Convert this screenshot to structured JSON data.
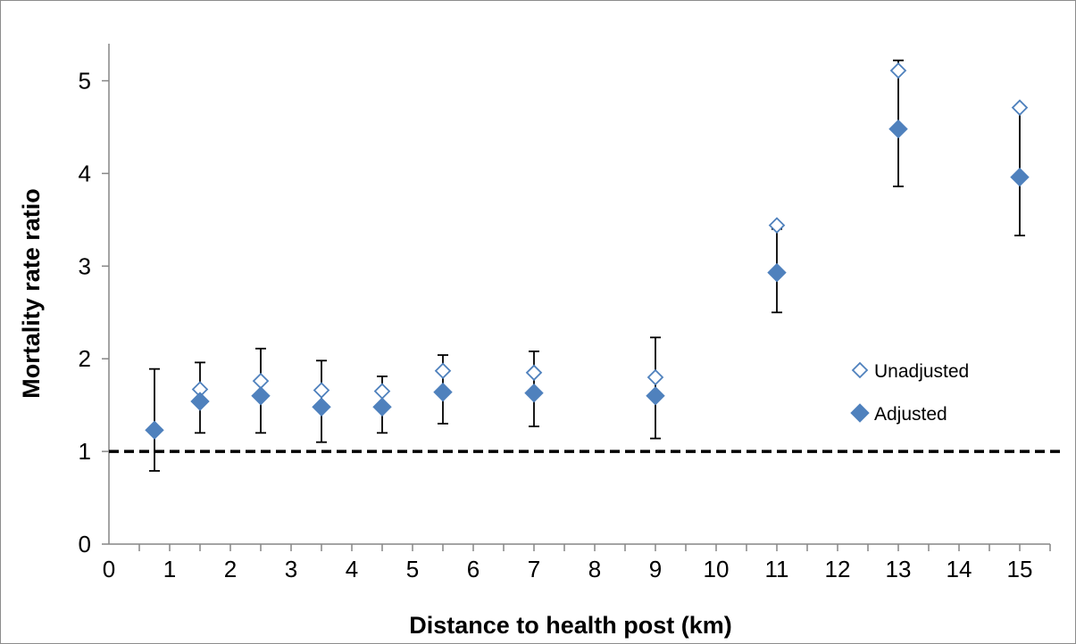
{
  "chart_data": {
    "type": "scatter",
    "title": "",
    "xlabel": "Distance to health post (km)",
    "ylabel": "Mortality rate ratio",
    "xlim": [
      0,
      15.5
    ],
    "ylim": [
      0,
      5.4
    ],
    "x_ticks": [
      0,
      1,
      2,
      3,
      4,
      5,
      6,
      7,
      8,
      9,
      10,
      11,
      12,
      13,
      14,
      15
    ],
    "y_ticks": [
      0,
      1,
      2,
      3,
      4,
      5
    ],
    "grid": false,
    "legend_position": "right",
    "reference_line": {
      "y": 1,
      "style": "dashed"
    },
    "series": [
      {
        "name": "Unadjusted",
        "marker": "diamond-open",
        "color": "#4f81bd",
        "points": [
          {
            "x": 0.75,
            "y": 1.23
          },
          {
            "x": 1.5,
            "y": 1.67
          },
          {
            "x": 2.5,
            "y": 1.76
          },
          {
            "x": 3.5,
            "y": 1.66
          },
          {
            "x": 4.5,
            "y": 1.65
          },
          {
            "x": 5.5,
            "y": 1.87
          },
          {
            "x": 7,
            "y": 1.85
          },
          {
            "x": 9,
            "y": 1.8
          },
          {
            "x": 11,
            "y": 3.44
          },
          {
            "x": 13,
            "y": 5.11
          },
          {
            "x": 15,
            "y": 4.71
          }
        ]
      },
      {
        "name": "Adjusted",
        "marker": "diamond-filled",
        "color": "#4f81bd",
        "points": [
          {
            "x": 0.75,
            "y": 1.23,
            "lo": 0.79,
            "hi": 1.89
          },
          {
            "x": 1.5,
            "y": 1.54,
            "lo": 1.2,
            "hi": 1.96
          },
          {
            "x": 2.5,
            "y": 1.6,
            "lo": 1.2,
            "hi": 2.11
          },
          {
            "x": 3.5,
            "y": 1.48,
            "lo": 1.1,
            "hi": 1.98
          },
          {
            "x": 4.5,
            "y": 1.48,
            "lo": 1.2,
            "hi": 1.81
          },
          {
            "x": 5.5,
            "y": 1.64,
            "lo": 1.3,
            "hi": 2.04
          },
          {
            "x": 7,
            "y": 1.63,
            "lo": 1.27,
            "hi": 2.08
          },
          {
            "x": 9,
            "y": 1.6,
            "lo": 1.14,
            "hi": 2.23
          },
          {
            "x": 11,
            "y": 2.93,
            "lo": 2.5,
            "hi": 3.4
          },
          {
            "x": 13,
            "y": 4.48,
            "lo": 3.86,
            "hi": 5.22
          },
          {
            "x": 15,
            "y": 3.96,
            "lo": 3.33,
            "hi": 4.69
          }
        ]
      }
    ]
  }
}
